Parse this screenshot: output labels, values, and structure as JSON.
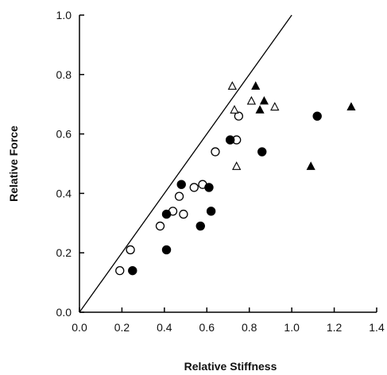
{
  "chart_data": {
    "type": "scatter",
    "title": "",
    "xlabel": "Relative Stiffness",
    "ylabel": "Relative Force",
    "xlim": [
      0.0,
      1.4
    ],
    "ylim": [
      0.0,
      1.0
    ],
    "x_ticks": [
      "0.0",
      "0.2",
      "0.4",
      "0.6",
      "0.8",
      "1.0",
      "1.2",
      "1.4"
    ],
    "y_ticks": [
      "0.0",
      "0.2",
      "0.4",
      "0.6",
      "0.8",
      "1.0"
    ],
    "grid": false,
    "legend": "none",
    "reference_line": {
      "x": [
        0.0,
        1.0
      ],
      "y": [
        0.0,
        1.0
      ]
    },
    "series": [
      {
        "marker": "open-circle",
        "points": [
          [
            0.19,
            0.14
          ],
          [
            0.24,
            0.21
          ],
          [
            0.38,
            0.29
          ],
          [
            0.44,
            0.34
          ],
          [
            0.47,
            0.39
          ],
          [
            0.49,
            0.33
          ],
          [
            0.54,
            0.42
          ],
          [
            0.58,
            0.43
          ],
          [
            0.64,
            0.54
          ],
          [
            0.74,
            0.58
          ],
          [
            0.75,
            0.66
          ]
        ]
      },
      {
        "marker": "filled-circle",
        "points": [
          [
            0.25,
            0.14
          ],
          [
            0.41,
            0.21
          ],
          [
            0.41,
            0.33
          ],
          [
            0.48,
            0.43
          ],
          [
            0.57,
            0.29
          ],
          [
            0.61,
            0.42
          ],
          [
            0.62,
            0.34
          ],
          [
            0.71,
            0.58
          ],
          [
            0.86,
            0.54
          ],
          [
            1.12,
            0.66
          ]
        ]
      },
      {
        "marker": "open-triangle",
        "points": [
          [
            0.72,
            0.76
          ],
          [
            0.73,
            0.68
          ],
          [
            0.74,
            0.49
          ],
          [
            0.81,
            0.71
          ],
          [
            0.92,
            0.69
          ]
        ]
      },
      {
        "marker": "filled-triangle",
        "points": [
          [
            0.83,
            0.76
          ],
          [
            0.85,
            0.68
          ],
          [
            0.87,
            0.71
          ],
          [
            1.09,
            0.49
          ],
          [
            1.28,
            0.69
          ]
        ]
      }
    ]
  }
}
